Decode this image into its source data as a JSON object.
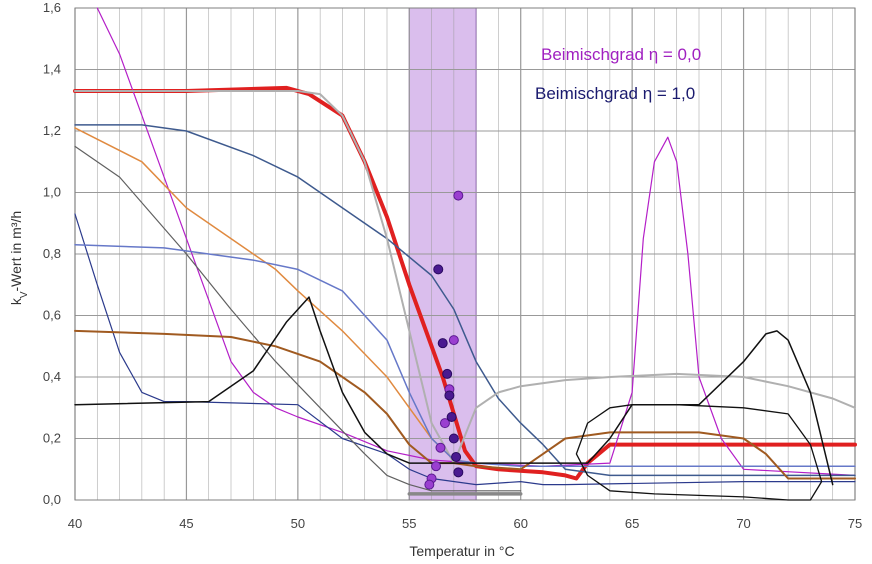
{
  "chart_data": {
    "type": "line",
    "title": "",
    "xlabel": "Temperatur in °C",
    "ylabel": "kV-Wert in m³/h",
    "ylabel_parts": {
      "k": "k",
      "sub": "V",
      "rest": "-Wert  in  m³/h"
    },
    "xlim": [
      40,
      75
    ],
    "ylim": [
      0,
      1.6
    ],
    "x_ticks": [
      40,
      45,
      50,
      55,
      60,
      65,
      70,
      75
    ],
    "x_tick_labels": [
      "40",
      "45",
      "50",
      "55",
      "60",
      "65",
      "70",
      "75"
    ],
    "y_ticks": [
      0,
      0.2,
      0.4,
      0.6,
      0.8,
      1.0,
      1.2,
      1.4,
      1.6
    ],
    "y_tick_labels": [
      "0,0",
      "0,2",
      "0,4",
      "0,6",
      "0,8",
      "1,0",
      "1,2",
      "1,4",
      "1,6"
    ],
    "x_minor_step": 1,
    "highlight_band": {
      "x_start": 55,
      "x_end": 58,
      "color": "#b57edc",
      "opacity": 0.5
    },
    "legend": [
      {
        "label": "Beimischgrad η = 0,0",
        "color": "#a020c0"
      },
      {
        "label": "Beimischgrad η = 1,0",
        "color": "#1a1a6e"
      }
    ],
    "colors": {
      "grid": "#999999",
      "axis": "#7f7f7f"
    },
    "series": [
      {
        "name": "red (bold)",
        "color": "#e02020",
        "width": 4,
        "x": [
          40,
          45,
          49.5,
          50.5,
          52,
          53,
          54,
          55,
          56,
          56.5,
          57,
          57.5,
          58,
          59,
          61,
          62,
          62.5,
          63,
          64,
          68,
          75
        ],
        "y": [
          1.33,
          1.33,
          1.34,
          1.32,
          1.25,
          1.1,
          0.92,
          0.7,
          0.5,
          0.4,
          0.28,
          0.16,
          0.11,
          0.1,
          0.09,
          0.08,
          0.07,
          0.12,
          0.18,
          0.18,
          0.18
        ]
      },
      {
        "name": "magenta",
        "color": "#b41ec8",
        "width": 1.2,
        "x": [
          41,
          42,
          43,
          44,
          45,
          46,
          47,
          48,
          49,
          50,
          52,
          54,
          56,
          58,
          61,
          64,
          65,
          65.5,
          66,
          66.6,
          67,
          67.5,
          68,
          69,
          70,
          75
        ],
        "y": [
          1.6,
          1.45,
          1.25,
          1.05,
          0.85,
          0.65,
          0.45,
          0.35,
          0.3,
          0.27,
          0.22,
          0.16,
          0.13,
          0.12,
          0.11,
          0.12,
          0.35,
          0.85,
          1.1,
          1.18,
          1.1,
          0.8,
          0.4,
          0.2,
          0.1,
          0.08
        ]
      },
      {
        "name": "navy",
        "color": "#2b3a8c",
        "width": 1.2,
        "x": [
          40,
          41,
          42,
          43,
          44,
          45,
          50,
          52,
          54,
          55,
          56,
          58,
          60,
          61,
          62,
          70,
          75
        ],
        "y": [
          0.93,
          0.7,
          0.48,
          0.35,
          0.32,
          0.32,
          0.31,
          0.2,
          0.15,
          0.1,
          0.07,
          0.05,
          0.06,
          0.05,
          0.05,
          0.06,
          0.06
        ]
      },
      {
        "name": "dark grey",
        "color": "#606060",
        "width": 1.2,
        "x": [
          40,
          42,
          45,
          47,
          49,
          51,
          53,
          54,
          55,
          56,
          58,
          60
        ],
        "y": [
          1.15,
          1.05,
          0.8,
          0.62,
          0.45,
          0.3,
          0.15,
          0.08,
          0.05,
          0.03,
          0.03,
          0.03
        ]
      },
      {
        "name": "steel blue (top)",
        "color": "#3e5a8e",
        "width": 1.5,
        "x": [
          40,
          43,
          45,
          48,
          50,
          52,
          54,
          56,
          57,
          58,
          59,
          60,
          61,
          62,
          64,
          70,
          75
        ],
        "y": [
          1.22,
          1.22,
          1.2,
          1.12,
          1.05,
          0.95,
          0.85,
          0.73,
          0.62,
          0.45,
          0.33,
          0.25,
          0.18,
          0.1,
          0.08,
          0.08,
          0.08
        ]
      },
      {
        "name": "light grey",
        "color": "#b0b0b0",
        "width": 2,
        "x": [
          40,
          45,
          50,
          51,
          52,
          53,
          54,
          55,
          56,
          57,
          58,
          59,
          60,
          62,
          64,
          67,
          70,
          72,
          74,
          75
        ],
        "y": [
          1.33,
          1.33,
          1.33,
          1.32,
          1.25,
          1.1,
          0.85,
          0.55,
          0.25,
          0.12,
          0.3,
          0.35,
          0.37,
          0.39,
          0.4,
          0.41,
          0.4,
          0.37,
          0.33,
          0.3
        ]
      },
      {
        "name": "orange",
        "color": "#e08a40",
        "width": 1.5,
        "x": [
          40,
          43,
          45,
          47,
          49,
          50,
          52,
          54,
          55,
          56,
          57,
          58
        ],
        "y": [
          1.21,
          1.1,
          0.95,
          0.85,
          0.75,
          0.68,
          0.55,
          0.4,
          0.3,
          0.2,
          0.13,
          0.12
        ]
      },
      {
        "name": "light blue",
        "color": "#6678c8",
        "width": 1.5,
        "x": [
          40,
          44,
          46,
          48,
          50,
          52,
          54,
          55,
          56,
          57,
          58,
          60,
          62,
          75
        ],
        "y": [
          0.83,
          0.82,
          0.8,
          0.78,
          0.75,
          0.68,
          0.52,
          0.35,
          0.2,
          0.13,
          0.12,
          0.11,
          0.11,
          0.11
        ]
      },
      {
        "name": "brown",
        "color": "#a05a20",
        "width": 2,
        "x": [
          40,
          44,
          47,
          49,
          51,
          53,
          54,
          55,
          56,
          57,
          58,
          60,
          61,
          62,
          64,
          68,
          70,
          71,
          72,
          75
        ],
        "y": [
          0.55,
          0.54,
          0.53,
          0.5,
          0.45,
          0.35,
          0.28,
          0.18,
          0.12,
          0.12,
          0.11,
          0.1,
          0.15,
          0.2,
          0.22,
          0.22,
          0.2,
          0.15,
          0.07,
          0.07
        ]
      },
      {
        "name": "black",
        "color": "#111111",
        "width": 1.5,
        "x": [
          40,
          46,
          48,
          49.5,
          50.5,
          51,
          52,
          53,
          54,
          55,
          56,
          57,
          60,
          63,
          64,
          65,
          68,
          70,
          71,
          71.5,
          72,
          73,
          74
        ],
        "y": [
          0.31,
          0.32,
          0.42,
          0.58,
          0.66,
          0.55,
          0.35,
          0.22,
          0.15,
          0.12,
          0.12,
          0.12,
          0.12,
          0.12,
          0.2,
          0.31,
          0.31,
          0.45,
          0.54,
          0.55,
          0.52,
          0.35,
          0.05
        ]
      },
      {
        "name": "black loop",
        "color": "#111111",
        "width": 1.3,
        "closed": true,
        "x": [
          62.5,
          63,
          64,
          65,
          67,
          70,
          72,
          73,
          73.5,
          73,
          72,
          70,
          66,
          64,
          63,
          62.5
        ],
        "y": [
          0.15,
          0.25,
          0.3,
          0.31,
          0.31,
          0.3,
          0.28,
          0.18,
          0.06,
          0.0,
          0.0,
          0.01,
          0.02,
          0.03,
          0.08,
          0.15
        ]
      },
      {
        "name": "grey base",
        "color": "#888888",
        "width": 3.5,
        "x": [
          55,
          60
        ],
        "y": [
          0.02,
          0.02
        ]
      }
    ],
    "markers": [
      {
        "name": "purple dots",
        "color": "#9a3fd0",
        "stroke": "#5a1a90",
        "x": [
          57.2,
          57.0,
          56.8,
          56.6,
          56.4,
          56.2,
          56.0,
          55.9
        ],
        "y": [
          0.99,
          0.52,
          0.36,
          0.25,
          0.17,
          0.11,
          0.07,
          0.05
        ]
      },
      {
        "name": "dark purple dots",
        "color": "#4a1a90",
        "stroke": "#2a0a60",
        "x": [
          56.3,
          56.5,
          56.7,
          56.8,
          56.9,
          57.0,
          57.1,
          57.2
        ],
        "y": [
          0.75,
          0.51,
          0.41,
          0.34,
          0.27,
          0.2,
          0.14,
          0.09
        ]
      }
    ]
  }
}
